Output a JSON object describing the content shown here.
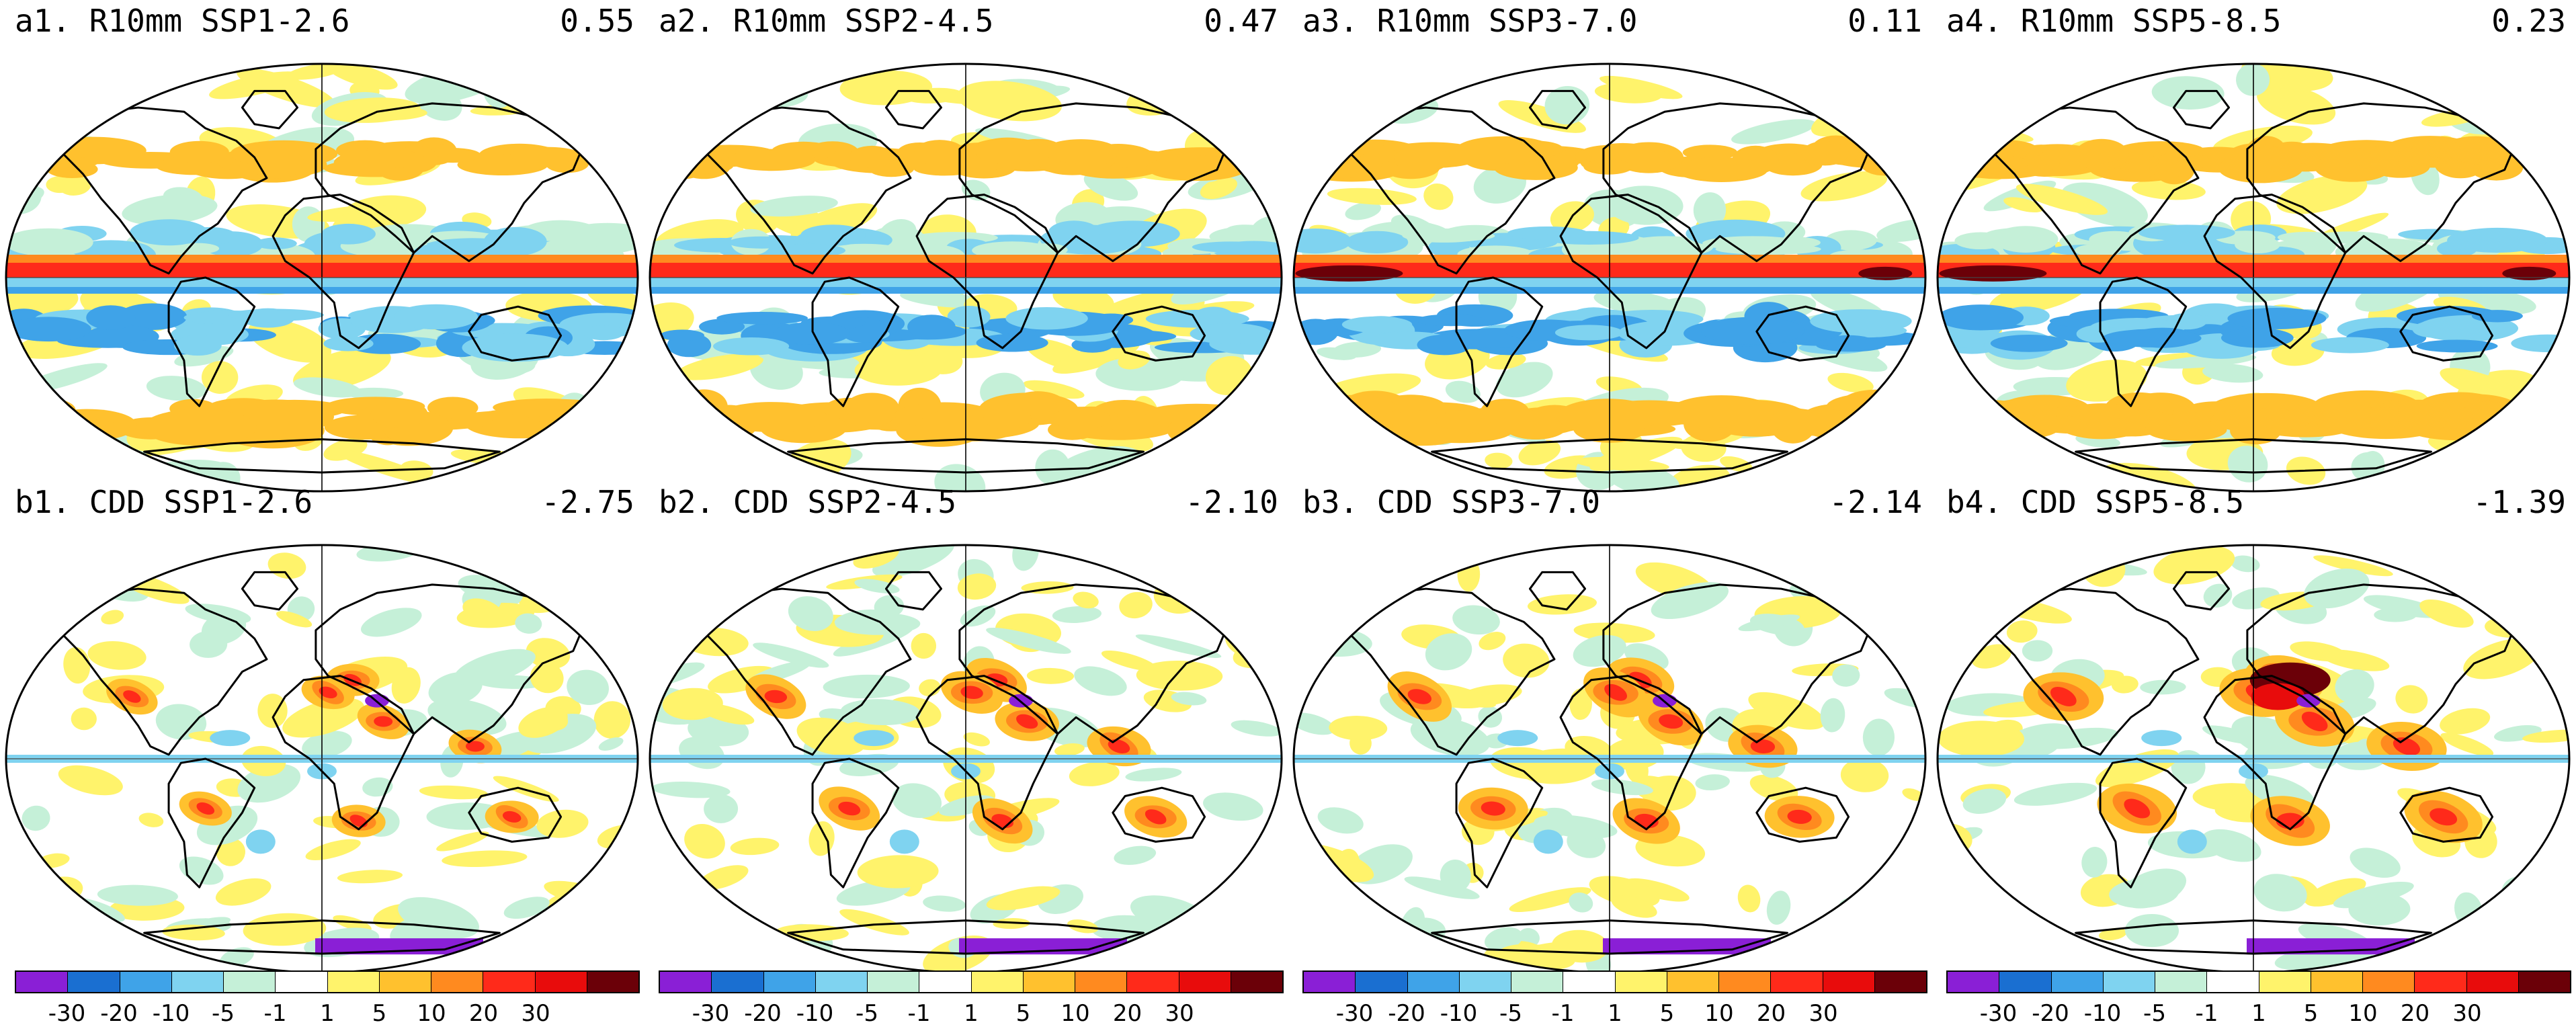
{
  "panels": [
    {
      "id": "a1",
      "title": "a1. R10mm SSP1-2.6",
      "stat": "0.55",
      "variable": "R10mm"
    },
    {
      "id": "a2",
      "title": "a2. R10mm SSP2-4.5",
      "stat": "0.47",
      "variable": "R10mm"
    },
    {
      "id": "a3",
      "title": "a3. R10mm SSP3-7.0",
      "stat": "0.11",
      "variable": "R10mm"
    },
    {
      "id": "a4",
      "title": "a4. R10mm SSP5-8.5",
      "stat": "0.23",
      "variable": "R10mm"
    },
    {
      "id": "b1",
      "title": "b1. CDD SSP1-2.6",
      "stat": "-2.75",
      "variable": "CDD"
    },
    {
      "id": "b2",
      "title": "b2. CDD SSP2-4.5",
      "stat": "-2.10",
      "variable": "CDD"
    },
    {
      "id": "b3",
      "title": "b3. CDD SSP3-7.0",
      "stat": "-2.14",
      "variable": "CDD"
    },
    {
      "id": "b4",
      "title": "b4. CDD SSP5-8.5",
      "stat": "-1.39",
      "variable": "CDD"
    }
  ],
  "colorbar": {
    "colors": [
      "#8a1fd6",
      "#1a6fd1",
      "#3fa3e8",
      "#7fd3f0",
      "#c5f0d8",
      "#ffffff",
      "#fff36b",
      "#ffc12e",
      "#ff8a1f",
      "#ff2a1a",
      "#e80c0c",
      "#6b0008"
    ],
    "tick_labels": [
      "-30",
      "-20",
      "-10",
      "-5",
      "-1",
      "1",
      "5",
      "10",
      "20",
      "30"
    ]
  },
  "colors": {
    "coastline": "#000000",
    "land_fill": "none",
    "ocean_background": "#ffffff"
  }
}
